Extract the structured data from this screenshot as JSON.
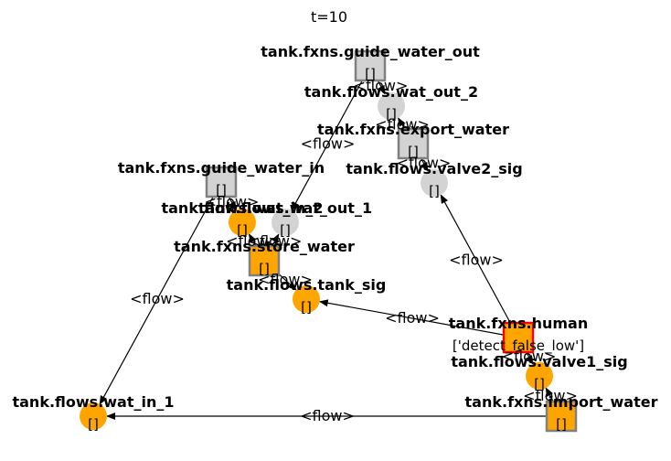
{
  "title": "t=10",
  "colors": {
    "active": "#ffa500",
    "inactive": "#d3d3d3",
    "function_border": "#808080",
    "faulty_border": "#ff0000",
    "edge": "#000000"
  },
  "nodes": {
    "guide_water_out": {
      "label": "tank.fxns.guide_water_out",
      "state": "[]",
      "shape": "square",
      "status": "inactive"
    },
    "wat_out_2": {
      "label": "tank.flows.wat_out_2",
      "state": "[]",
      "shape": "circle",
      "status": "inactive"
    },
    "export_water": {
      "label": "tank.fxns.export_water",
      "state": "[]",
      "shape": "square",
      "status": "inactive"
    },
    "valve2_sig": {
      "label": "tank.flows.valve2_sig",
      "state": "[]",
      "shape": "circle",
      "status": "inactive"
    },
    "guide_water_in": {
      "label": "tank.fxns.guide_water_in",
      "state": "[]",
      "shape": "square",
      "status": "inactive"
    },
    "wat_in_2": {
      "label": "tank.flows.wat_in_2",
      "state": "[]",
      "shape": "circle",
      "status": "active"
    },
    "wat_out_1": {
      "label": "tank.flows.wat_out_1",
      "state": "[]",
      "shape": "circle",
      "status": "inactive"
    },
    "store_water": {
      "label": "tank.fxns.store_water",
      "state": "[]",
      "shape": "square",
      "status": "active"
    },
    "tank_sig": {
      "label": "tank.flows.tank_sig",
      "state": "[]",
      "shape": "circle",
      "status": "active"
    },
    "human": {
      "label": "tank.fxns.human",
      "state": "['detect_false_low']",
      "shape": "square",
      "status": "faulty"
    },
    "valve1_sig": {
      "label": "tank.flows.valve1_sig",
      "state": "[]",
      "shape": "circle",
      "status": "active"
    },
    "wat_in_1": {
      "label": "tank.flows.wat_in_1",
      "state": "[]",
      "shape": "circle",
      "status": "active"
    },
    "import_water": {
      "label": "tank.fxns.import_water",
      "state": "[]",
      "shape": "square",
      "status": "active"
    }
  },
  "edges": [
    {
      "id": "e1",
      "from": "guide_water_out",
      "to": "wat_out_2",
      "label": "<flow>"
    },
    {
      "id": "e2",
      "from": "export_water",
      "to": "wat_out_2",
      "label": "<flow>"
    },
    {
      "id": "e3",
      "from": "export_water",
      "to": "valve2_sig",
      "label": "<flow>"
    },
    {
      "id": "e4",
      "from": "guide_water_out",
      "to": "wat_out_1",
      "label": "<flow>"
    },
    {
      "id": "e5",
      "from": "guide_water_in",
      "to": "wat_in_2",
      "label": "<flow>"
    },
    {
      "id": "e6",
      "from": "guide_water_in",
      "to": "wat_in_1",
      "label": "<flow>"
    },
    {
      "id": "e7",
      "from": "store_water",
      "to": "wat_in_2",
      "label": "<flow>"
    },
    {
      "id": "e8",
      "from": "store_water",
      "to": "wat_out_1",
      "label": "<flow>"
    },
    {
      "id": "e9",
      "from": "store_water",
      "to": "tank_sig",
      "label": "<flow>"
    },
    {
      "id": "e10",
      "from": "human",
      "to": "tank_sig",
      "label": "<flow>"
    },
    {
      "id": "e11",
      "from": "human",
      "to": "valve2_sig",
      "label": "<flow>"
    },
    {
      "id": "e12",
      "from": "human",
      "to": "valve1_sig",
      "label": "<flow>"
    },
    {
      "id": "e13",
      "from": "import_water",
      "to": "valve1_sig",
      "label": "<flow>"
    },
    {
      "id": "e14",
      "from": "import_water",
      "to": "wat_in_1",
      "label": "<flow>"
    }
  ]
}
